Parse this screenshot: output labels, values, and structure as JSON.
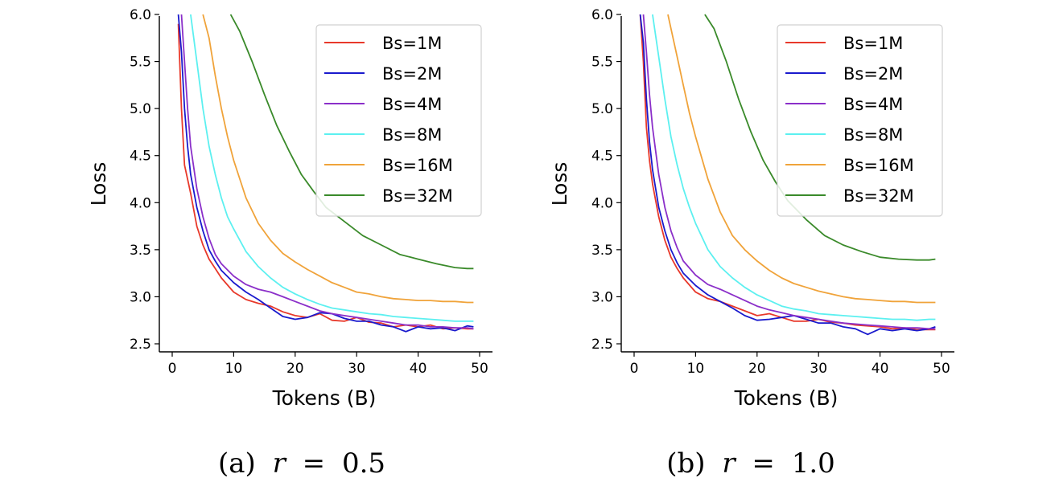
{
  "chart_data": [
    {
      "type": "line",
      "caption_label": "(a)",
      "caption_var": "r",
      "caption_op": "=",
      "caption_value": "0.5",
      "xlabel": "Tokens (B)",
      "ylabel": "Loss",
      "xlim": [
        0,
        50
      ],
      "ylim": [
        2.5,
        6.0
      ],
      "xticks": [
        "0",
        "10",
        "20",
        "30",
        "40",
        "50"
      ],
      "yticks": [
        "2.5",
        "3.0",
        "3.5",
        "4.0",
        "4.5",
        "5.0",
        "5.5",
        "6.0"
      ],
      "legend_position": "upper right",
      "grid": false,
      "series": [
        {
          "name": "Bs=1M",
          "color": "#e8392b",
          "x": [
            1,
            1.5,
            2,
            2.5,
            3,
            4,
            5,
            6,
            7,
            8,
            10,
            12,
            14,
            16,
            18,
            20,
            22,
            24,
            26,
            28,
            30,
            32,
            34,
            36,
            38,
            40,
            42,
            44,
            46,
            48,
            49
          ],
          "y": [
            5.9,
            5.0,
            4.4,
            4.25,
            4.1,
            3.75,
            3.55,
            3.4,
            3.3,
            3.2,
            3.05,
            2.97,
            2.93,
            2.9,
            2.84,
            2.8,
            2.78,
            2.82,
            2.75,
            2.74,
            2.78,
            2.73,
            2.72,
            2.68,
            2.7,
            2.68,
            2.7,
            2.66,
            2.67,
            2.66,
            2.66
          ]
        },
        {
          "name": "Bs=2M",
          "color": "#1a1acd",
          "x": [
            1,
            1.5,
            2,
            2.5,
            3,
            4,
            5,
            6,
            7,
            8,
            10,
            12,
            14,
            16,
            18,
            20,
            22,
            24,
            26,
            28,
            30,
            32,
            34,
            36,
            38,
            40,
            42,
            44,
            46,
            48,
            49
          ],
          "y": [
            6.0,
            5.6,
            5.0,
            4.6,
            4.3,
            3.95,
            3.7,
            3.5,
            3.38,
            3.28,
            3.15,
            3.05,
            2.97,
            2.88,
            2.79,
            2.76,
            2.78,
            2.83,
            2.82,
            2.77,
            2.74,
            2.74,
            2.7,
            2.68,
            2.63,
            2.68,
            2.66,
            2.67,
            2.64,
            2.69,
            2.68
          ]
        },
        {
          "name": "Bs=4M",
          "color": "#8b2fc9",
          "x": [
            1.5,
            2,
            2.5,
            3,
            4,
            5,
            6,
            7,
            8,
            10,
            12,
            14,
            16,
            18,
            20,
            22,
            24,
            26,
            28,
            30,
            32,
            34,
            36,
            38,
            40,
            42,
            44,
            46,
            48,
            49
          ],
          "y": [
            6.0,
            5.5,
            5.0,
            4.6,
            4.15,
            3.85,
            3.62,
            3.45,
            3.35,
            3.22,
            3.13,
            3.08,
            3.05,
            3.0,
            2.95,
            2.9,
            2.85,
            2.82,
            2.8,
            2.78,
            2.76,
            2.74,
            2.72,
            2.7,
            2.7,
            2.68,
            2.68,
            2.67,
            2.67,
            2.66
          ]
        },
        {
          "name": "Bs=8M",
          "color": "#5cf0f0",
          "x": [
            3,
            4,
            5,
            6,
            7,
            8,
            9,
            10,
            12,
            14,
            16,
            18,
            20,
            22,
            24,
            26,
            28,
            30,
            32,
            34,
            36,
            38,
            40,
            42,
            44,
            46,
            48,
            49
          ],
          "y": [
            6.0,
            5.5,
            5.0,
            4.6,
            4.3,
            4.05,
            3.85,
            3.72,
            3.48,
            3.32,
            3.2,
            3.1,
            3.03,
            2.97,
            2.92,
            2.88,
            2.86,
            2.84,
            2.82,
            2.81,
            2.79,
            2.78,
            2.77,
            2.76,
            2.75,
            2.74,
            2.74,
            2.74
          ]
        },
        {
          "name": "Bs=16M",
          "color": "#f0a33a",
          "x": [
            5,
            6,
            7,
            8,
            9,
            10,
            12,
            14,
            16,
            18,
            20,
            22,
            24,
            26,
            28,
            30,
            32,
            34,
            36,
            38,
            40,
            42,
            44,
            46,
            48,
            49
          ],
          "y": [
            6.0,
            5.75,
            5.35,
            5.0,
            4.7,
            4.45,
            4.05,
            3.78,
            3.6,
            3.46,
            3.37,
            3.29,
            3.22,
            3.15,
            3.1,
            3.05,
            3.03,
            3.0,
            2.98,
            2.97,
            2.96,
            2.96,
            2.95,
            2.95,
            2.94,
            2.94
          ]
        },
        {
          "name": "Bs=32M",
          "color": "#3a8a2a",
          "x": [
            9.5,
            11,
            13,
            15,
            17,
            19,
            21,
            23,
            25,
            28,
            31,
            34,
            37,
            40,
            43,
            46,
            48,
            49
          ],
          "y": [
            6.0,
            5.82,
            5.5,
            5.15,
            4.82,
            4.55,
            4.3,
            4.12,
            3.95,
            3.8,
            3.65,
            3.55,
            3.45,
            3.4,
            3.35,
            3.31,
            3.3,
            3.3
          ]
        }
      ]
    },
    {
      "type": "line",
      "caption_label": "(b)",
      "caption_var": "r",
      "caption_op": "=",
      "caption_value": "1.0",
      "xlabel": "Tokens (B)",
      "ylabel": "Loss",
      "xlim": [
        0,
        50
      ],
      "ylim": [
        2.5,
        6.0
      ],
      "xticks": [
        "0",
        "10",
        "20",
        "30",
        "40",
        "50"
      ],
      "yticks": [
        "2.5",
        "3.0",
        "3.5",
        "4.0",
        "4.5",
        "5.0",
        "5.5",
        "6.0"
      ],
      "legend_position": "upper right",
      "grid": false,
      "series": [
        {
          "name": "Bs=1M",
          "color": "#e8392b",
          "x": [
            1,
            1.5,
            2,
            2.5,
            3,
            4,
            5,
            6,
            7,
            8,
            10,
            12,
            14,
            16,
            18,
            20,
            22,
            24,
            26,
            28,
            30,
            32,
            34,
            36,
            38,
            40,
            42,
            44,
            46,
            48,
            49
          ],
          "y": [
            6.0,
            5.5,
            4.8,
            4.45,
            4.2,
            3.85,
            3.6,
            3.42,
            3.3,
            3.2,
            3.05,
            2.98,
            2.95,
            2.9,
            2.85,
            2.8,
            2.82,
            2.78,
            2.74,
            2.74,
            2.76,
            2.73,
            2.72,
            2.7,
            2.69,
            2.68,
            2.66,
            2.67,
            2.65,
            2.65,
            2.65
          ]
        },
        {
          "name": "Bs=2M",
          "color": "#1a1acd",
          "x": [
            1,
            1.5,
            2,
            2.5,
            3,
            4,
            5,
            6,
            7,
            8,
            10,
            12,
            14,
            16,
            18,
            20,
            22,
            24,
            26,
            28,
            30,
            32,
            34,
            36,
            38,
            40,
            42,
            44,
            46,
            48,
            49
          ],
          "y": [
            6.0,
            5.7,
            5.1,
            4.65,
            4.35,
            3.95,
            3.7,
            3.5,
            3.36,
            3.25,
            3.12,
            3.02,
            2.95,
            2.88,
            2.8,
            2.75,
            2.76,
            2.78,
            2.8,
            2.76,
            2.72,
            2.72,
            2.68,
            2.66,
            2.6,
            2.66,
            2.64,
            2.66,
            2.64,
            2.66,
            2.68
          ]
        },
        {
          "name": "Bs=4M",
          "color": "#8b2fc9",
          "x": [
            1.5,
            2,
            2.5,
            3,
            4,
            5,
            6,
            7,
            8,
            10,
            12,
            14,
            16,
            18,
            20,
            22,
            24,
            26,
            28,
            30,
            32,
            34,
            36,
            38,
            40,
            42,
            44,
            46,
            48,
            49
          ],
          "y": [
            6.0,
            5.6,
            5.15,
            4.8,
            4.3,
            3.95,
            3.7,
            3.52,
            3.38,
            3.23,
            3.13,
            3.08,
            3.02,
            2.96,
            2.9,
            2.86,
            2.83,
            2.8,
            2.78,
            2.76,
            2.74,
            2.72,
            2.71,
            2.7,
            2.69,
            2.68,
            2.67,
            2.67,
            2.66,
            2.66
          ]
        },
        {
          "name": "Bs=8M",
          "color": "#5cf0f0",
          "x": [
            3,
            4,
            5,
            6,
            7,
            8,
            9,
            10,
            12,
            14,
            16,
            18,
            20,
            22,
            24,
            26,
            28,
            30,
            32,
            34,
            36,
            38,
            40,
            42,
            44,
            46,
            48,
            49
          ],
          "y": [
            6.0,
            5.55,
            5.1,
            4.7,
            4.4,
            4.15,
            3.95,
            3.78,
            3.5,
            3.32,
            3.2,
            3.1,
            3.02,
            2.96,
            2.9,
            2.87,
            2.85,
            2.82,
            2.81,
            2.8,
            2.79,
            2.78,
            2.77,
            2.76,
            2.76,
            2.75,
            2.76,
            2.76
          ]
        },
        {
          "name": "Bs=16M",
          "color": "#f0a33a",
          "x": [
            5.5,
            6,
            7,
            8,
            9,
            10,
            12,
            14,
            16,
            18,
            20,
            22,
            24,
            26,
            28,
            30,
            32,
            34,
            36,
            38,
            40,
            42,
            44,
            46,
            48,
            49
          ],
          "y": [
            6.0,
            5.85,
            5.55,
            5.25,
            4.95,
            4.7,
            4.25,
            3.9,
            3.65,
            3.5,
            3.38,
            3.28,
            3.2,
            3.14,
            3.1,
            3.06,
            3.03,
            3.0,
            2.98,
            2.97,
            2.96,
            2.95,
            2.95,
            2.94,
            2.94,
            2.94
          ]
        },
        {
          "name": "Bs=32M",
          "color": "#3a8a2a",
          "x": [
            11.5,
            13,
            15,
            17,
            19,
            21,
            23,
            25,
            28,
            31,
            34,
            37,
            40,
            43,
            46,
            48,
            49
          ],
          "y": [
            6.0,
            5.85,
            5.5,
            5.1,
            4.75,
            4.45,
            4.22,
            4.02,
            3.82,
            3.65,
            3.55,
            3.48,
            3.42,
            3.4,
            3.39,
            3.39,
            3.4
          ]
        }
      ]
    }
  ]
}
